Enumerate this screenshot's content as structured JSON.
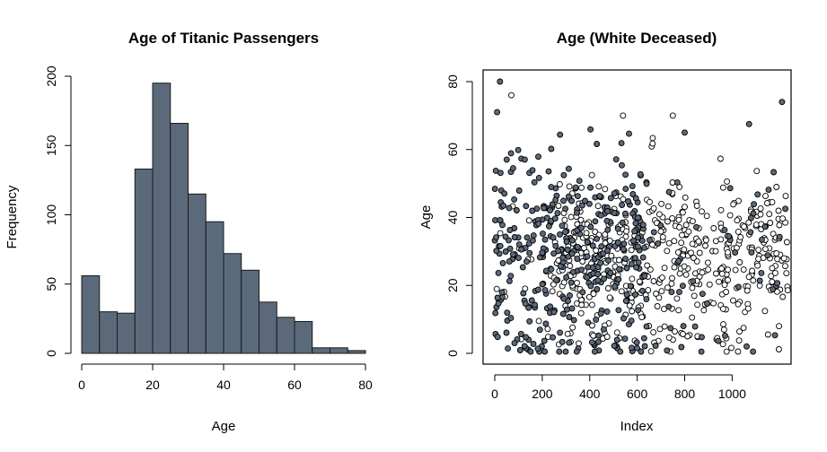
{
  "palette": {
    "bar_fill": "#5b6a7b",
    "deceased_fill": "#5b6a7b",
    "survived_fill": "#ffffff",
    "outline": "#000000"
  },
  "chart_data": [
    {
      "type": "bar",
      "subtype": "histogram",
      "title": "Age of Titanic Passengers",
      "xlabel": "Age",
      "ylabel": "Frequency",
      "xlim": [
        0,
        80
      ],
      "ylim": [
        0,
        200
      ],
      "xticks": [
        "0",
        "20",
        "40",
        "60",
        "80"
      ],
      "yticks": [
        "0",
        "50",
        "100",
        "150",
        "200"
      ],
      "bins": [
        [
          0,
          5
        ],
        [
          5,
          10
        ],
        [
          10,
          15
        ],
        [
          15,
          20
        ],
        [
          20,
          25
        ],
        [
          25,
          30
        ],
        [
          30,
          35
        ],
        [
          35,
          40
        ],
        [
          40,
          45
        ],
        [
          45,
          50
        ],
        [
          50,
          55
        ],
        [
          55,
          60
        ],
        [
          60,
          65
        ],
        [
          65,
          70
        ],
        [
          70,
          75
        ],
        [
          75,
          80
        ]
      ],
      "values": [
        56,
        30,
        29,
        133,
        195,
        166,
        115,
        95,
        72,
        60,
        37,
        26,
        23,
        4,
        4,
        2
      ]
    },
    {
      "type": "scatter",
      "title": "Age (White Deceased)",
      "xlabel": "Index",
      "ylabel": "Age",
      "xlim": [
        0,
        1320
      ],
      "ylim": [
        0,
        80
      ],
      "xticks": [
        "0",
        "200",
        "400",
        "600",
        "800",
        "1000"
      ],
      "yticks": [
        "0",
        "20",
        "40",
        "60",
        "80"
      ],
      "grid": false,
      "series": [
        {
          "marker": "filled",
          "count": 440,
          "index_range": [
            1,
            1309
          ],
          "age_range": [
            0.5,
            80
          ],
          "dense_below_index": 640,
          "mean": 31,
          "sd": 14
        },
        {
          "marker": "open",
          "count": 560,
          "index_range": [
            1,
            1309
          ],
          "age_range": [
            0.5,
            74
          ],
          "dense_above_index": 600,
          "mean": 28,
          "sd": 11
        }
      ],
      "highlights": [
        [
          22,
          80
        ],
        [
          70,
          76
        ],
        [
          1210,
          74
        ],
        [
          750,
          70
        ],
        [
          10,
          71
        ],
        [
          540,
          70
        ],
        [
          800,
          65
        ]
      ]
    }
  ]
}
